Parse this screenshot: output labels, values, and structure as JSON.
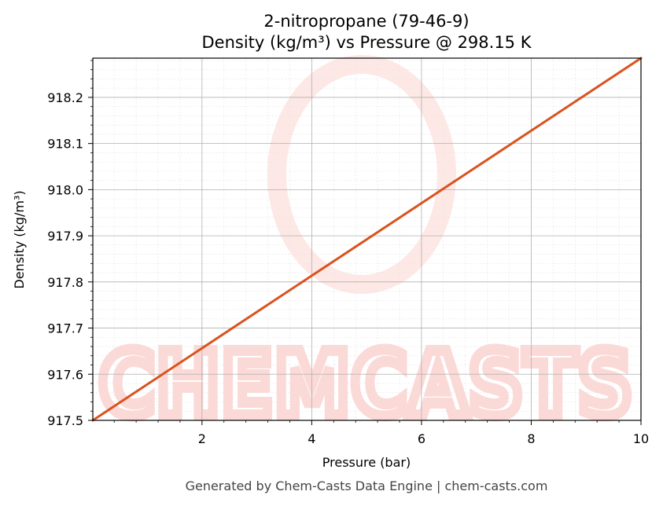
{
  "chart_data": {
    "type": "line",
    "title": "2-nitropropane (79-46-9)",
    "subtitle": "Density (kg/m³) vs Pressure @ 298.15 K",
    "xlabel": "Pressure (bar)",
    "ylabel": "Density (kg/m³)",
    "xlim": [
      0.01,
      10
    ],
    "ylim": [
      917.5,
      918.285
    ],
    "x_ticks": [
      2,
      4,
      6,
      8,
      10
    ],
    "x_tick_labels": [
      "2",
      "4",
      "6",
      "8",
      "10"
    ],
    "y_ticks": [
      917.5,
      917.6,
      917.7,
      917.8,
      917.9,
      918.0,
      918.1,
      918.2
    ],
    "y_tick_labels": [
      "917.5",
      "917.6",
      "917.7",
      "917.8",
      "917.9",
      "918.0",
      "918.1",
      "918.2"
    ],
    "grid": true,
    "series": [
      {
        "color": "#d9531e",
        "x": [
          0.01,
          10
        ],
        "y": [
          917.5,
          918.285
        ]
      }
    ]
  },
  "watermark": {
    "text": "CHEMCASTS",
    "color": "#fbd5d2"
  },
  "footer": "Generated by Chem-Casts Data Engine | chem-casts.com"
}
